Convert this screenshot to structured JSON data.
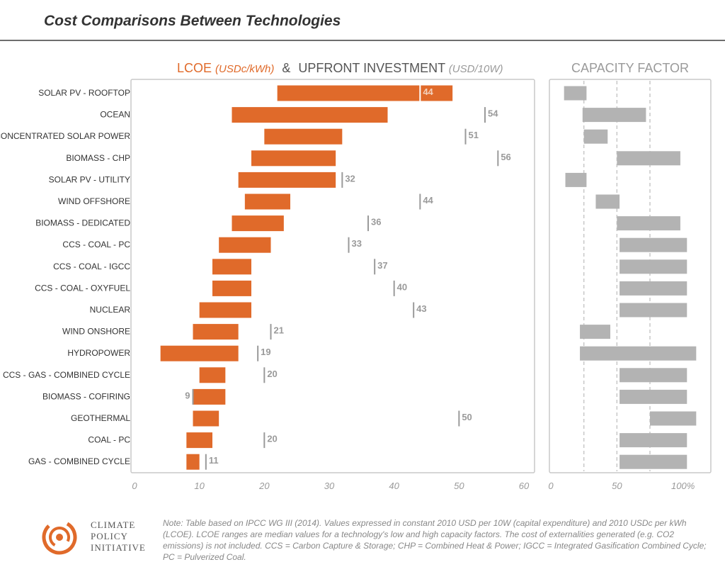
{
  "title": "Cost Comparisons Between Technologies",
  "legend": {
    "lcoe_label": "LCOE",
    "lcoe_unit": "(USDc/kWh)",
    "amp": "&",
    "investment_label": "UPFRONT INVESTMENT",
    "investment_unit": "(USD/10W)"
  },
  "capacity_title": "CAPACITY FACTOR",
  "colors": {
    "lcoe_bar": "#e06a2a",
    "capacity_bar": "#b3b3b3",
    "marker": "#9a9a9a",
    "frame": "#c8c8c8"
  },
  "chart_data": [
    {
      "type": "bar",
      "orientation": "horizontal-range",
      "title": "LCOE (USDc/kWh) & UPFRONT INVESTMENT (USD/10W)",
      "categories": [
        "SOLAR PV - ROOFTOP",
        "OCEAN",
        "CONCENTRATED SOLAR POWER",
        "BIOMASS - CHP",
        "SOLAR PV - UTILITY",
        "WIND OFFSHORE",
        "BIOMASS - DEDICATED",
        "CCS - COAL - PC",
        "CCS - COAL - IGCC",
        "CCS - COAL - OXYFUEL",
        "NUCLEAR",
        "WIND ONSHORE",
        "HYDROPOWER",
        "CCS - GAS - COMBINED CYCLE",
        "BIOMASS - COFIRING",
        "GEOTHERMAL",
        "COAL - PC",
        "GAS - COMBINED CYCLE"
      ],
      "lcoe_ranges": [
        [
          22,
          49
        ],
        [
          15,
          39
        ],
        [
          20,
          32
        ],
        [
          18,
          31
        ],
        [
          16,
          31
        ],
        [
          17,
          24
        ],
        [
          15,
          23
        ],
        [
          13,
          21
        ],
        [
          12,
          18
        ],
        [
          12,
          18
        ],
        [
          10,
          18
        ],
        [
          9,
          16
        ],
        [
          4,
          16
        ],
        [
          10,
          14
        ],
        [
          9,
          14
        ],
        [
          9,
          13
        ],
        [
          8,
          12
        ],
        [
          8,
          10
        ]
      ],
      "investment": [
        44,
        54,
        51,
        56,
        32,
        44,
        36,
        33,
        37,
        40,
        43,
        21,
        19,
        20,
        9,
        50,
        20,
        11
      ],
      "investment_labels": [
        "44",
        "54",
        "51",
        "56",
        "32",
        "44",
        "36",
        "33",
        "37",
        "40",
        "43",
        "21",
        "19",
        "20",
        "9",
        "50",
        "20",
        "11"
      ],
      "xlim": [
        0,
        60
      ],
      "xticks": [
        0,
        10,
        20,
        30,
        40,
        50,
        60
      ],
      "xtick_labels": [
        "0",
        "10",
        "20",
        "30",
        "40",
        "50",
        "60"
      ]
    },
    {
      "type": "bar",
      "orientation": "horizontal-range",
      "title": "CAPACITY FACTOR",
      "categories_ref": "same as LCOE chart",
      "ranges": [
        [
          10,
          27
        ],
        [
          24,
          72
        ],
        [
          25,
          43
        ],
        [
          50,
          98
        ],
        [
          11,
          27
        ],
        [
          34,
          52
        ],
        [
          50,
          98
        ],
        [
          52,
          103
        ],
        [
          52,
          103
        ],
        [
          52,
          103
        ],
        [
          52,
          103
        ],
        [
          22,
          45
        ],
        [
          22,
          110
        ],
        [
          52,
          103
        ],
        [
          52,
          103
        ],
        [
          75,
          110
        ],
        [
          52,
          103
        ],
        [
          52,
          103
        ]
      ],
      "xlim": [
        0,
        120
      ],
      "gridlines": [
        25,
        50,
        75
      ],
      "xtick_labels": [
        "0",
        "50",
        "100%"
      ],
      "xtick_values": [
        0,
        50,
        100
      ]
    }
  ],
  "logo": {
    "line1": "CLIMATE",
    "line2": "POLICY",
    "line3": "INITIATIVE"
  },
  "note": "Note: Table based on IPCC WG III (2014). Values expressed in constant 2010 USD per 10W (capital expenditure) and 2010 USDc per kWh (LCOE). LCOE ranges are median values for a technology's low and high capacity factors. The cost of externalities generated (e.g. CO2 emissions) is not included. CCS = Carbon Capture & Storage; CHP = Combined Heat & Power; IGCC = Integrated Gasification Combined Cycle; PC = Pulverized Coal."
}
